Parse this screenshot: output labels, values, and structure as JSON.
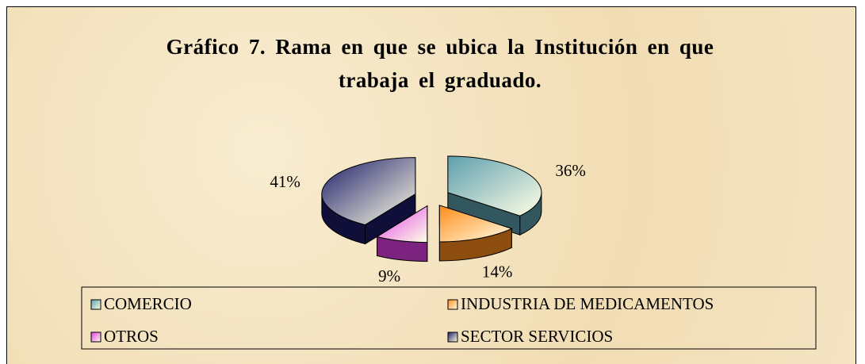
{
  "chart_data": {
    "type": "pie",
    "title": "Gráfico 7. Rama en que se ubica la Institución en que trabaja el graduado.",
    "categories": [
      "COMERCIO",
      "INDUSTRIA DE MEDICAMENTOS",
      "OTROS",
      "SECTOR SERVICIOS"
    ],
    "values": [
      36,
      14,
      9,
      41
    ],
    "value_labels": [
      "36%",
      "14%",
      "9%",
      "41%"
    ],
    "colors": [
      "#5e9fae",
      "#ff8c1a",
      "#e040e8",
      "#1c1c6a"
    ],
    "legend": "bottom"
  }
}
